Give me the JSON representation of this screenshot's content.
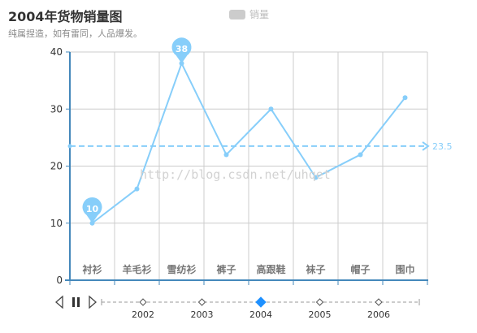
{
  "chart_data": {
    "type": "line",
    "title": "2004年货物销量图",
    "subtitle": "纯属捏造，如有雷同，人品爆发。",
    "legend": [
      "销量"
    ],
    "legend_position": "top-center",
    "categories": [
      "衬衫",
      "羊毛衫",
      "雪纺衫",
      "裤子",
      "高跟鞋",
      "袜子",
      "帽子",
      "围巾"
    ],
    "series": [
      {
        "name": "销量",
        "values": [
          10,
          16,
          38,
          22,
          30,
          18,
          22,
          32
        ],
        "color": "#87cefa"
      }
    ],
    "ylim": [
      0,
      40
    ],
    "yticks": [
      0,
      10,
      20,
      30,
      40
    ],
    "grid": true,
    "mark_points": [
      {
        "category": "雪纺衫",
        "value": 38,
        "label": "38"
      },
      {
        "category": "衬衫",
        "value": 10,
        "label": "10"
      }
    ],
    "mark_line": {
      "value": 23.5,
      "label": "23.5"
    },
    "timeline": {
      "years": [
        "2002",
        "2003",
        "2004",
        "2005",
        "2006"
      ],
      "current": "2004"
    }
  },
  "watermark": "http://blog.csdn.net/uhqet",
  "colors": {
    "line": "#87cefa",
    "axis": "#4488bb",
    "grid": "#cccccc",
    "timeline_active": "#1e90ff"
  },
  "icons": {
    "prev": "triangle-left-icon",
    "play": "pause-icon",
    "next": "triangle-right-icon"
  }
}
